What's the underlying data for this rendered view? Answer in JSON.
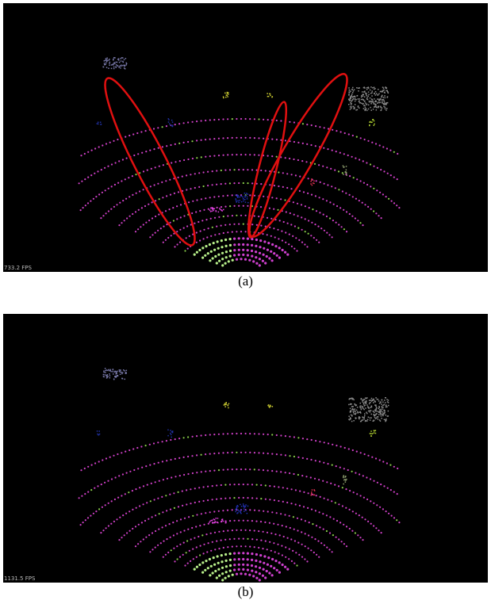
{
  "panels": [
    {
      "fps": "733.2 FPS",
      "caption": "(a)"
    },
    {
      "fps": "1131.5 FPS",
      "caption": "(b)"
    }
  ]
}
